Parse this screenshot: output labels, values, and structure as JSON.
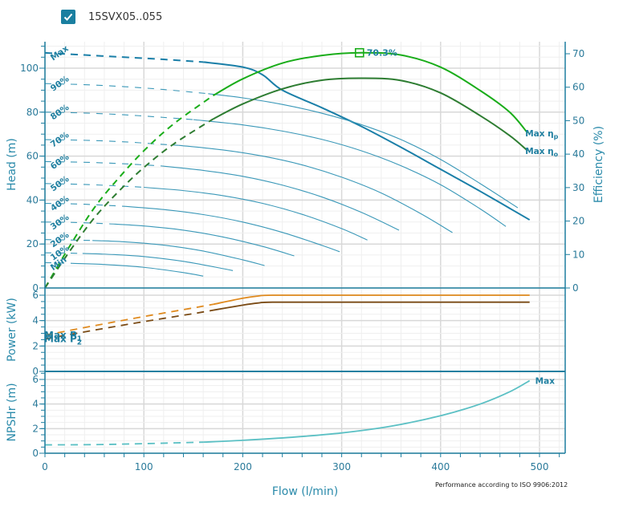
{
  "header": {
    "checkbox_checked": true,
    "series_label": "15SVX05..055"
  },
  "footer_note": "Performance according to ISO 9906:2012",
  "colors": {
    "axis": "#1f7fa0",
    "head_max": "#1a7fa8",
    "head_speed": "#3a98b8",
    "eff_pump": "#1aad1a",
    "eff_overall": "#2e7d32",
    "power_p1": "#e08a1e",
    "power_p2": "#7a4a14",
    "npsh": "#5bc0c4",
    "grid_major": "#d8d8d8",
    "grid_minor": "#efefef",
    "bep_marker": "#1aad1a"
  },
  "chart_data": [
    {
      "id": "head",
      "type": "line",
      "ylabel": "Head (m)",
      "y2label": "Efficiency (%)",
      "xlim": [
        0,
        525
      ],
      "ylim": [
        0,
        112
      ],
      "y2lim": [
        0,
        74.5
      ],
      "yticks": [
        0,
        20,
        40,
        60,
        80,
        100
      ],
      "y2ticks": [
        0,
        10,
        20,
        30,
        40,
        50,
        60,
        70
      ],
      "grid": true,
      "head_series": [
        {
          "name": "Max",
          "label": "Max",
          "bold": true,
          "dash_until": 160,
          "x": [
            0,
            40,
            80,
            120,
            160,
            200,
            220,
            240,
            280,
            320,
            360,
            400,
            440,
            490
          ],
          "y": [
            107,
            106,
            105,
            104,
            102.8,
            100.5,
            97,
            90,
            82,
            73.5,
            64,
            54,
            44,
            31
          ]
        },
        {
          "name": "90%",
          "label": "90%",
          "dash_until": 165,
          "x": [
            0,
            40,
            80,
            120,
            165,
            200,
            240,
            280,
            320,
            360,
            400,
            440,
            478
          ],
          "y": [
            93,
            92.5,
            91.6,
            90.3,
            88.4,
            86.5,
            83.5,
            79.5,
            74.3,
            67.5,
            58.5,
            47.5,
            36.5
          ]
        },
        {
          "name": "80%",
          "label": "80%",
          "dash_until": 150,
          "x": [
            0,
            40,
            80,
            120,
            150,
            200,
            240,
            280,
            320,
            360,
            400,
            440,
            466
          ],
          "y": [
            80,
            79.6,
            78.8,
            77.6,
            76.6,
            74.2,
            71.4,
            67.6,
            62.4,
            55.6,
            47,
            36,
            28
          ]
        },
        {
          "name": "70%",
          "label": "70%",
          "dash_until": 135,
          "x": [
            0,
            40,
            80,
            120,
            135,
            180,
            220,
            260,
            300,
            340,
            380,
            412
          ],
          "y": [
            67.5,
            67.2,
            66.5,
            65.3,
            64.9,
            62.8,
            60,
            56,
            50.4,
            43.2,
            33.8,
            25.2
          ]
        },
        {
          "name": "60%",
          "label": "60%",
          "dash_until": 118,
          "x": [
            0,
            40,
            80,
            118,
            160,
            200,
            240,
            280,
            320,
            358
          ],
          "y": [
            57.5,
            57.2,
            56.5,
            55.5,
            53.5,
            50.8,
            46.8,
            41.4,
            34.4,
            26.3
          ]
        },
        {
          "name": "50%",
          "label": "50%",
          "dash_until": 100,
          "x": [
            0,
            40,
            80,
            100,
            140,
            180,
            220,
            260,
            300,
            326
          ],
          "y": [
            47.5,
            47.1,
            46.3,
            45.8,
            44.3,
            42,
            38.5,
            33.5,
            27,
            21.8
          ]
        },
        {
          "name": "40%",
          "label": "40%",
          "dash_until": 82,
          "x": [
            0,
            40,
            82,
            120,
            160,
            200,
            240,
            280,
            298
          ],
          "y": [
            38.5,
            38.1,
            37.1,
            35.7,
            33.4,
            30,
            25.3,
            19.4,
            16.5
          ]
        },
        {
          "name": "30%",
          "label": "30%",
          "dash_until": 65,
          "x": [
            0,
            30,
            65,
            100,
            140,
            180,
            220,
            252
          ],
          "y": [
            30,
            29.8,
            29.2,
            28.2,
            26.3,
            23.2,
            18.9,
            14.6
          ]
        },
        {
          "name": "20%",
          "label": "20%",
          "dash_until": 48,
          "x": [
            0,
            30,
            48,
            80,
            120,
            160,
            200,
            222
          ],
          "y": [
            22,
            21.8,
            21.6,
            21,
            19.5,
            16.8,
            12.8,
            10.2
          ]
        },
        {
          "name": "10%",
          "label": "10%",
          "dash_until": 38,
          "x": [
            0,
            20,
            38,
            70,
            100,
            140,
            180,
            190
          ],
          "y": [
            16,
            15.9,
            15.7,
            15.2,
            14.3,
            12.1,
            8.8,
            7.9
          ]
        },
        {
          "name": "Min",
          "label": "Min",
          "dash_until": 28,
          "x": [
            0,
            15,
            28,
            60,
            100,
            140,
            160
          ],
          "y": [
            11.5,
            11.4,
            11.2,
            10.7,
            9.4,
            7,
            5.4
          ]
        }
      ],
      "efficiency_series": [
        {
          "name": "Max ηp",
          "label": "Max",
          "subscript": "p",
          "dash_until": 170,
          "x": [
            0,
            25,
            50,
            75,
            100,
            130,
            170,
            200,
            240,
            280,
            320,
            360,
            400,
            440,
            470,
            488
          ],
          "y": [
            0,
            12.5,
            24,
            33,
            41,
            49,
            57.5,
            62.5,
            67.2,
            69.5,
            70.3,
            69.6,
            66,
            59,
            52.5,
            46.3
          ]
        },
        {
          "name": "Max ηo",
          "label": "Max",
          "subscript": "o",
          "dash_until": 170,
          "x": [
            0,
            25,
            50,
            75,
            100,
            130,
            170,
            200,
            240,
            280,
            320,
            360,
            400,
            440,
            470,
            488
          ],
          "y": [
            0,
            11,
            21,
            29,
            36,
            43,
            50.5,
            55,
            59.5,
            62.1,
            62.7,
            62,
            58.3,
            51.5,
            45.5,
            41
          ]
        }
      ],
      "bep": {
        "x": 318,
        "efficiency": 70.3,
        "label": "70.3%"
      }
    },
    {
      "id": "power",
      "type": "line",
      "ylabel": "Power (kW)",
      "xlim": [
        0,
        525
      ],
      "ylim": [
        0,
        6.3
      ],
      "yticks": [
        0,
        2,
        4,
        6
      ],
      "grid": true,
      "series": [
        {
          "name": "Max P1",
          "label": "Max",
          "subscript": "1",
          "dash_until": 170,
          "x": [
            0,
            50,
            100,
            150,
            170,
            200,
            215,
            230,
            300,
            400,
            490
          ],
          "y": [
            2.85,
            3.6,
            4.32,
            5.0,
            5.28,
            5.76,
            5.93,
            6.0,
            6.0,
            6.0,
            6.0
          ]
        },
        {
          "name": "Max P2",
          "label": "Max",
          "subscript": "2",
          "dash_until": 170,
          "x": [
            0,
            50,
            100,
            150,
            170,
            200,
            215,
            230,
            300,
            400,
            490
          ],
          "y": [
            2.55,
            3.25,
            3.92,
            4.55,
            4.82,
            5.22,
            5.38,
            5.45,
            5.45,
            5.45,
            5.45
          ]
        }
      ]
    },
    {
      "id": "npsh",
      "type": "line",
      "ylabel": "NPSHr (m)",
      "xlabel": "Flow (l/min)",
      "xlim": [
        0,
        525
      ],
      "xticks": [
        0,
        100,
        200,
        300,
        400,
        500
      ],
      "ylim": [
        0,
        6.6
      ],
      "yticks": [
        0,
        2,
        4,
        6
      ],
      "grid": true,
      "series": [
        {
          "name": "Max",
          "label": "Max",
          "dash_until": 160,
          "x": [
            0,
            50,
            100,
            160,
            200,
            250,
            300,
            350,
            400,
            440,
            470,
            490
          ],
          "y": [
            0.68,
            0.7,
            0.78,
            0.9,
            1.05,
            1.3,
            1.65,
            2.2,
            3.05,
            4.0,
            5.0,
            5.9
          ]
        }
      ]
    }
  ]
}
